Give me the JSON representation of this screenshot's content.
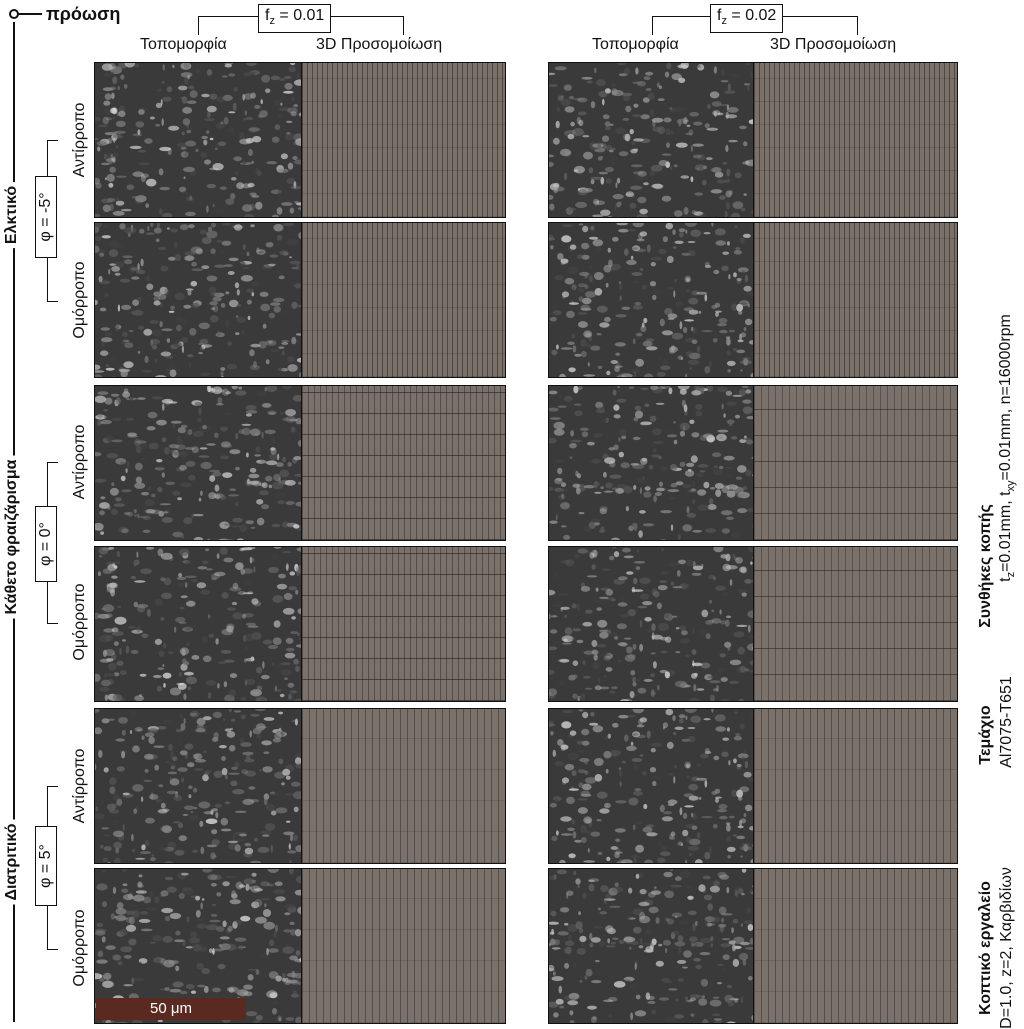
{
  "feed_label": "πρόωση",
  "columns": [
    {
      "fz": "0.01",
      "topo_label": "Τοπομορφία",
      "sim_label": "3D Προσομοίωση"
    },
    {
      "fz": "0.02",
      "topo_label": "Τοπομορφία",
      "sim_label": "3D Προσομοίωση"
    }
  ],
  "fz_prefix": "f",
  "fz_sub": "z",
  "fz_eq": " = ",
  "groups": [
    {
      "name": "Ελκτικό",
      "phi": "φ = -5°",
      "rows": [
        "Αντίρροπο",
        "Ομόρροπο"
      ]
    },
    {
      "name": "Κάθετο φραιζάρισμα",
      "phi": "φ = 0°",
      "rows": [
        "Αντίρροπο",
        "Ομόρροπο"
      ]
    },
    {
      "name": "Διατριτικό",
      "phi": "φ = 5°",
      "rows": [
        "Αντίρροπο",
        "Ομόρροπο"
      ]
    }
  ],
  "scale_bar": "50 μm",
  "right_caption": {
    "tool_title": "Κοπτικό εργαλείο",
    "tool_text": "D=1.0, z=2, Καρβιδίων",
    "part_title": "Τεμάχιο",
    "part_text": "Al7075-T651",
    "cond_title": "Συνθήκες κοπής",
    "cond_fz": "t",
    "cond_fz_sub": "z",
    "cond_fz_val": "=0.01mm, t",
    "cond_txy_sub": "xy",
    "cond_txy_val": "=0.01mm, n=16000rpm"
  }
}
